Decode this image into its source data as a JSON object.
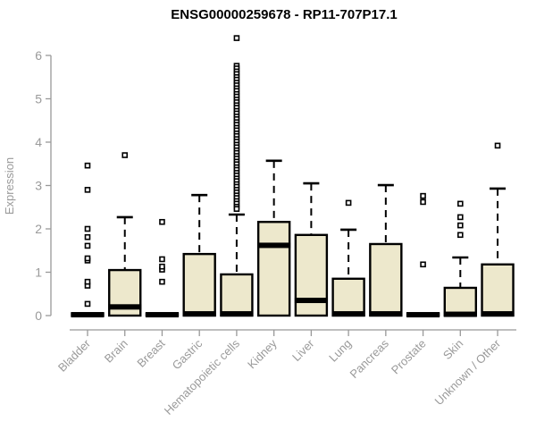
{
  "chart_data": {
    "type": "boxplot",
    "title": "ENSG00000259678 - RP11-707P17.1",
    "ylabel": "Expression",
    "xlabel": "",
    "ylim": [
      0,
      6.6
    ],
    "yticks": [
      0,
      1,
      2,
      3,
      4,
      5,
      6
    ],
    "grid": false,
    "legend": "none",
    "colors": {
      "box_fill": "#EDE8CC",
      "box_stroke": "#000000",
      "median": "#000000",
      "whisker": "#000000",
      "outlier_stroke": "#000000",
      "outlier_fill": "#ffffff",
      "axis": "#999999",
      "tick_label": "#9a9a9a",
      "title": "#000000",
      "background": "#ffffff"
    },
    "categories": [
      "Bladder",
      "Brain",
      "Breast",
      "Gastric",
      "Hematopoietic cells",
      "Kidney",
      "Liver",
      "Lung",
      "Pancreas",
      "Prostate",
      "Skin",
      "Unknown / Other"
    ],
    "series": [
      {
        "name": "Bladder",
        "whisker_low": 0,
        "q1": 0,
        "median": 0.02,
        "q3": 0.05,
        "whisker_high": 0.05,
        "outliers": [
          0.27,
          0.69,
          0.78,
          1.27,
          1.32,
          1.61,
          1.81,
          2.0,
          2.9,
          3.46
        ]
      },
      {
        "name": "Brain",
        "whisker_low": 0,
        "q1": 0,
        "median": 0.2,
        "q3": 1.05,
        "whisker_high": 2.27,
        "outliers": [
          3.7
        ]
      },
      {
        "name": "Breast",
        "whisker_low": 0,
        "q1": 0,
        "median": 0.02,
        "q3": 0.05,
        "whisker_high": 0.05,
        "outliers": [
          0.78,
          1.06,
          1.13,
          1.3,
          2.16
        ]
      },
      {
        "name": "Gastric",
        "whisker_low": 0,
        "q1": 0,
        "median": 0.04,
        "q3": 1.42,
        "whisker_high": 2.78,
        "outliers": []
      },
      {
        "name": "Hematopoietic cells",
        "whisker_low": 0,
        "q1": 0,
        "median": 0.04,
        "q3": 0.95,
        "whisker_high": 2.33,
        "outliers": [
          6.4,
          5.76,
          5.7,
          5.63,
          5.57,
          5.5,
          5.44,
          5.37,
          5.31,
          5.24,
          5.18,
          5.11,
          5.05,
          4.98,
          4.92,
          4.85,
          4.79,
          4.72,
          4.66,
          4.59,
          4.53,
          4.46,
          4.4,
          4.33,
          4.27,
          4.2,
          4.14,
          4.07,
          4.01,
          3.94,
          3.88,
          3.81,
          3.75,
          3.68,
          3.62,
          3.55,
          3.49,
          3.42,
          3.36,
          3.29,
          3.23,
          3.16,
          3.1,
          3.03,
          2.97,
          2.9,
          2.84,
          2.77,
          2.71,
          2.64,
          2.58,
          2.51,
          2.46
        ]
      },
      {
        "name": "Kidney",
        "whisker_low": 0,
        "q1": 0,
        "median": 1.62,
        "q3": 2.16,
        "whisker_high": 3.57,
        "outliers": []
      },
      {
        "name": "Liver",
        "whisker_low": 0,
        "q1": 0,
        "median": 0.35,
        "q3": 1.86,
        "whisker_high": 3.05,
        "outliers": []
      },
      {
        "name": "Lung",
        "whisker_low": 0,
        "q1": 0,
        "median": 0.04,
        "q3": 0.85,
        "whisker_high": 1.98,
        "outliers": [
          2.6
        ]
      },
      {
        "name": "Pancreas",
        "whisker_low": 0,
        "q1": 0,
        "median": 0.04,
        "q3": 1.65,
        "whisker_high": 3.01,
        "outliers": []
      },
      {
        "name": "Prostate",
        "whisker_low": 0,
        "q1": 0,
        "median": 0.02,
        "q3": 0.05,
        "whisker_high": 0.05,
        "outliers": [
          1.18,
          2.62,
          2.76
        ]
      },
      {
        "name": "Skin",
        "whisker_low": 0,
        "q1": 0,
        "median": 0.03,
        "q3": 0.64,
        "whisker_high": 1.34,
        "outliers": [
          1.86,
          2.08,
          2.27,
          2.58
        ]
      },
      {
        "name": "Unknown / Other",
        "whisker_low": 0,
        "q1": 0,
        "median": 0.04,
        "q3": 1.18,
        "whisker_high": 2.93,
        "outliers": [
          3.92
        ]
      }
    ]
  }
}
